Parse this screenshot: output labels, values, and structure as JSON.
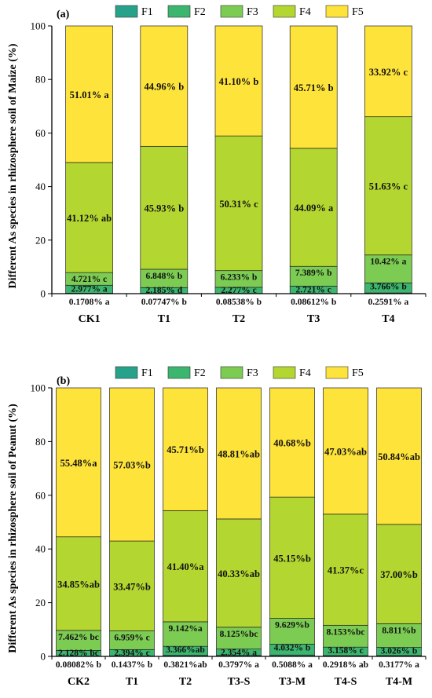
{
  "colors": {
    "F1": "#26A28A",
    "F2": "#3CB56E",
    "F3": "#7CCB52",
    "F4": "#B3D630",
    "F5": "#FEE33A"
  },
  "legend": [
    "F1",
    "F2",
    "F3",
    "F4",
    "F5"
  ],
  "chart_data": [
    {
      "type": "bar",
      "stacked": true,
      "panel": "(a)",
      "ylabel": "Different As species in rhizosphere soil of Maize (%)",
      "ylim": [
        0,
        100
      ],
      "yticks": [
        "0",
        "20",
        "40",
        "60",
        "80",
        "100"
      ],
      "categories": [
        "CK1",
        "T1",
        "T2",
        "T3",
        "T4"
      ],
      "series": [
        {
          "name": "F1",
          "values": [
            0.1708,
            0.07747,
            0.08538,
            0.08612,
            0.2591
          ],
          "labels": [
            "0.1708% a",
            "0.07747% b",
            "0.08538% b",
            "0.08612% b",
            "0.2591% a"
          ]
        },
        {
          "name": "F2",
          "values": [
            2.977,
            2.185,
            2.277,
            2.721,
            3.766
          ],
          "labels": [
            "2.977% a",
            "2.185% d",
            "2.277% c",
            "2.721% c",
            "3.766% b"
          ]
        },
        {
          "name": "F3",
          "values": [
            4.721,
            6.848,
            6.233,
            7.389,
            10.42
          ],
          "labels": [
            "4.721% c",
            "6.848% b",
            "6.233% b",
            "7.389% b",
            "10.42% a"
          ]
        },
        {
          "name": "F4",
          "values": [
            41.12,
            45.93,
            50.31,
            44.09,
            51.63
          ],
          "labels": [
            "41.12% ab",
            "45.93% b",
            "50.31% c",
            "44.09% a",
            "51.63% c"
          ]
        },
        {
          "name": "F5",
          "values": [
            51.01,
            44.96,
            41.1,
            45.71,
            33.92
          ],
          "labels": [
            "51.01% a",
            "44.96% b",
            "41.10% b",
            "45.71% b",
            "33.92% c"
          ]
        }
      ]
    },
    {
      "type": "bar",
      "stacked": true,
      "panel": "(b)",
      "ylabel": "Different As species in rhizosphere soil of Peanut (%)",
      "ylim": [
        0,
        100
      ],
      "yticks": [
        "0",
        "20",
        "40",
        "60",
        "80",
        "100"
      ],
      "categories": [
        "CK2",
        "T1",
        "T2",
        "T3-S",
        "T3-M",
        "T4-S",
        "T4-M"
      ],
      "series": [
        {
          "name": "F1",
          "values": [
            0.08082,
            0.1437,
            0.3821,
            0.3797,
            0.5088,
            0.2918,
            0.3177
          ],
          "labels": [
            "0.08082% b",
            "0.1437% b",
            "0.3821%ab",
            "0.3797% a",
            "0.5088% a",
            "0.2918% ab",
            "0.3177% a"
          ]
        },
        {
          "name": "F2",
          "values": [
            2.128,
            2.394,
            3.366,
            2.354,
            4.032,
            3.158,
            3.026
          ],
          "labels": [
            "2.128% bc",
            "2.394% c",
            "3.366%ab",
            "2.354% a",
            "4.032% b",
            "3.158% c",
            "3.026% b"
          ]
        },
        {
          "name": "F3",
          "values": [
            7.462,
            6.959,
            9.142,
            8.125,
            9.629,
            8.153,
            8.811
          ],
          "labels": [
            "7.462% bc",
            "6.959% c",
            "9.142%a",
            "8.125%bc",
            "9.629%b",
            "8.153%bc",
            "8.811%b"
          ]
        },
        {
          "name": "F4",
          "values": [
            34.85,
            33.47,
            41.4,
            40.33,
            45.15,
            41.37,
            37.0
          ],
          "labels": [
            "34.85%ab",
            "33.47%b",
            "41.40%a",
            "40.33%ab",
            "45.15%b",
            "41.37%c",
            "37.00%b"
          ]
        },
        {
          "name": "F5",
          "values": [
            55.48,
            57.03,
            45.71,
            48.81,
            40.68,
            47.03,
            50.84
          ],
          "labels": [
            "55.48%a",
            "57.03%b",
            "45.71%b",
            "48.81%ab",
            "40.68%b",
            "47.03%ab",
            "50.84%ab"
          ]
        }
      ]
    }
  ]
}
